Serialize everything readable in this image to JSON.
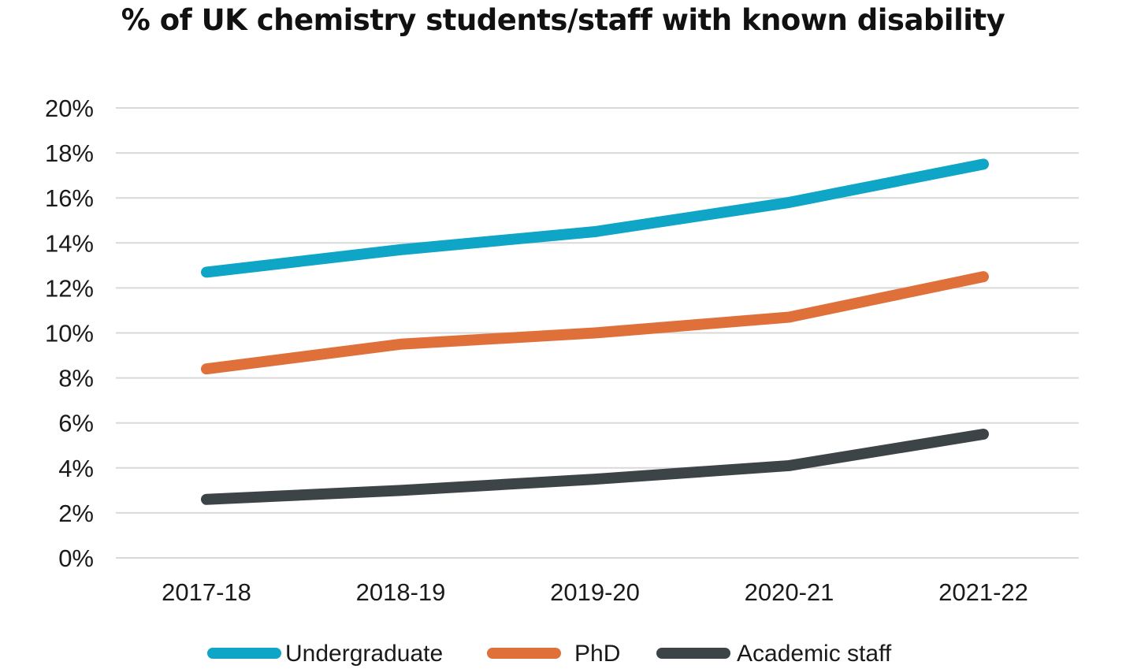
{
  "chart_data": {
    "type": "line",
    "title": "% of UK chemistry students/staff with known disability",
    "xlabel": "",
    "ylabel": "",
    "categories": [
      "2017-18",
      "2018-19",
      "2019-20",
      "2020-21",
      "2021-22"
    ],
    "ylim": [
      0,
      20
    ],
    "yticks": [
      0,
      2,
      4,
      6,
      8,
      10,
      12,
      14,
      16,
      18,
      20
    ],
    "ytick_labels": [
      "0%",
      "2%",
      "4%",
      "6%",
      "8%",
      "10%",
      "12%",
      "14%",
      "16%",
      "18%",
      "20%"
    ],
    "grid": "horizontal",
    "legend_position": "bottom",
    "series": [
      {
        "name": "Undergraduate",
        "color": "#0ea5c6",
        "values": [
          12.7,
          13.7,
          14.5,
          15.8,
          17.5
        ]
      },
      {
        "name": "PhD",
        "color": "#e0703a",
        "values": [
          8.4,
          9.5,
          10.0,
          10.7,
          12.5
        ]
      },
      {
        "name": "Academic staff",
        "color": "#3d4447",
        "values": [
          2.6,
          3.0,
          3.5,
          4.1,
          5.5
        ]
      }
    ]
  }
}
